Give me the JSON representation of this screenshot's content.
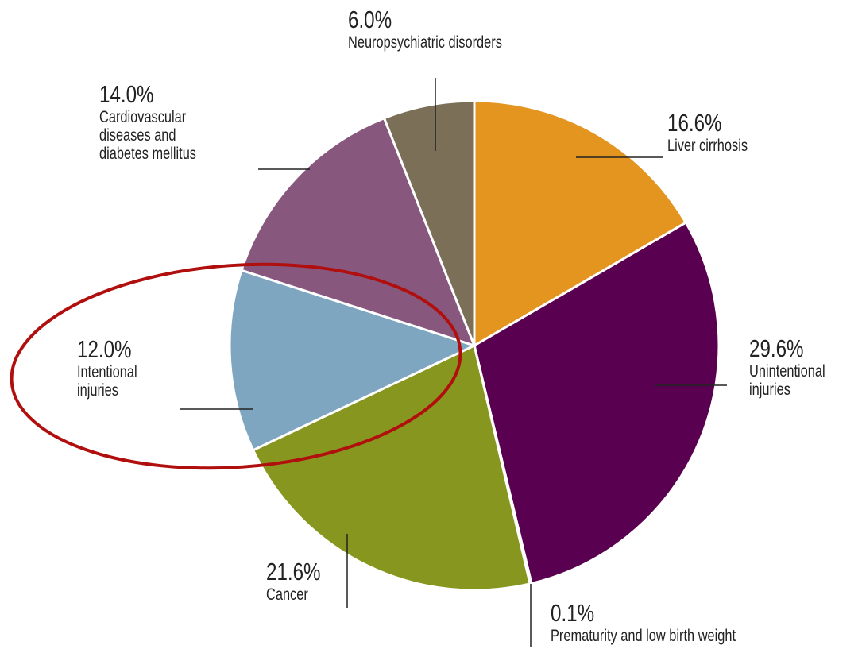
{
  "chart_data": {
    "type": "pie",
    "categories": [
      "Liver cirrhosis",
      "Unintentional injuries",
      "Prematurity and low birth weight",
      "Cancer",
      "Intentional injuries",
      "Cardiovascular diseases and diabetes mellitus",
      "Neuropsychiatric disorders"
    ],
    "values": [
      16.6,
      29.6,
      0.1,
      21.6,
      12.0,
      14.0,
      6.0
    ],
    "value_labels": [
      "16.6%",
      "29.6%",
      "0.1%",
      "21.6%",
      "12.0%",
      "14.0%",
      "6.0%"
    ],
    "colors": [
      "#e3951f",
      "#5a0050",
      "#b4b4b4",
      "#87961e",
      "#7fa6c1",
      "#87577e",
      "#7b6f58"
    ]
  }
}
